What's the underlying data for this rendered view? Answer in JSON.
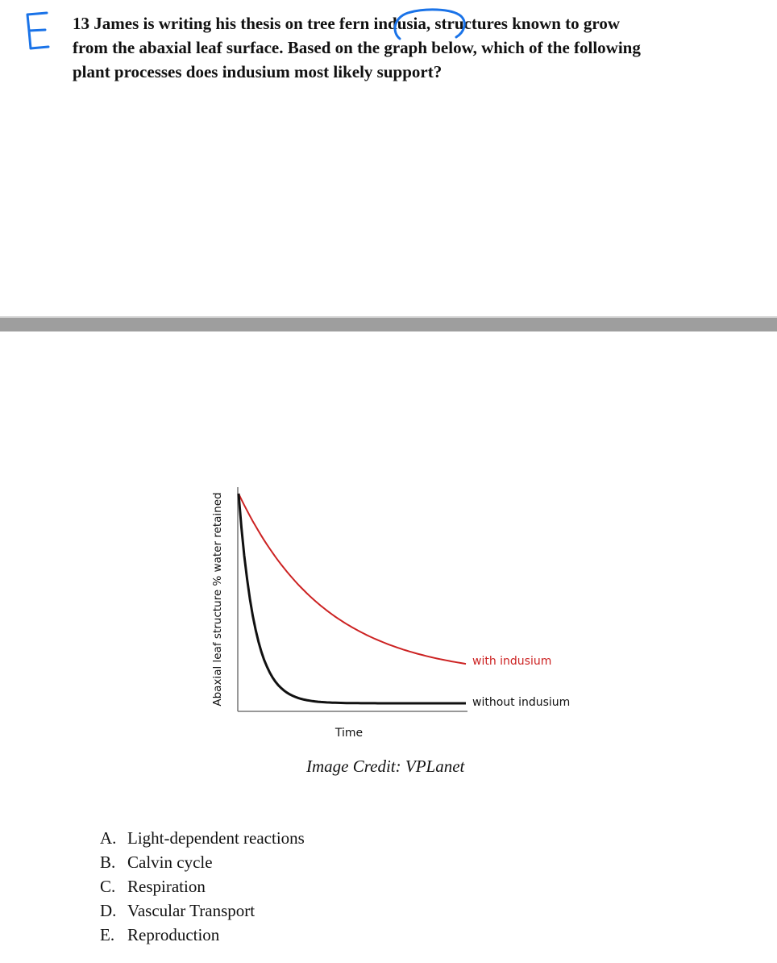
{
  "question": {
    "number": "13",
    "lines": [
      "James is writing his thesis on tree fern indusia, structures known to grow",
      "from the abaxial leaf surface. Based on the graph below, which of the following",
      "plant processes does indusium most likely support?"
    ]
  },
  "handwritten_answer": "E",
  "annotation_color": "#1a73e8",
  "image_credit": "Image Credit: VPLanet",
  "options": [
    {
      "letter": "A.",
      "text": "Light-dependent reactions"
    },
    {
      "letter": "B.",
      "text": "Calvin cycle"
    },
    {
      "letter": "C.",
      "text": "Respiration"
    },
    {
      "letter": "D.",
      "text": "Vascular Transport"
    },
    {
      "letter": "E.",
      "text": "Reproduction"
    }
  ],
  "chart_data": {
    "type": "line",
    "xlabel": "Time",
    "ylabel": "Abaxial leaf structure % water retained",
    "ticks": "none",
    "grid": false,
    "legend": "labels at line ends",
    "series": [
      {
        "name": "with indusium",
        "color": "#cc2222",
        "shape": "gradual exponential decay"
      },
      {
        "name": "without indusium",
        "color": "#111111",
        "shape": "rapid decay to a low plateau"
      }
    ]
  }
}
